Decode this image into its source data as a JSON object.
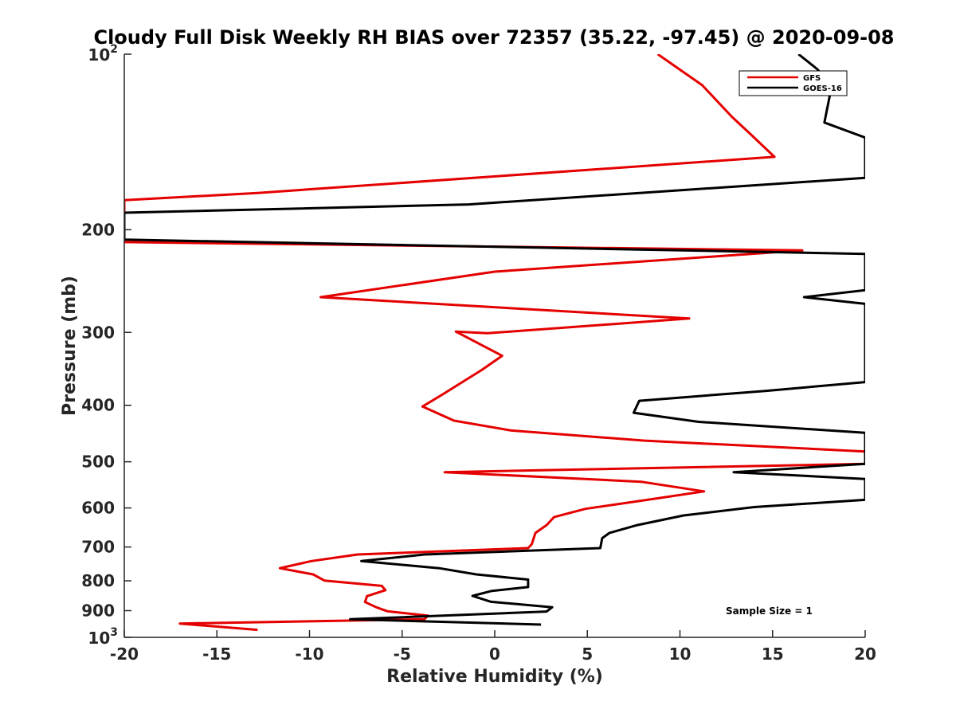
{
  "chart_data": {
    "type": "line",
    "title": "Cloudy Full Disk Weekly RH BIAS over 72357 (35.22, -97.45) @ 2020-09-08",
    "xlabel": "Relative Humidity (%)",
    "ylabel": "Pressure (mb)",
    "xlim": [
      -20,
      20
    ],
    "ylim": [
      100,
      1000
    ],
    "y_scale": "log",
    "y_reversed": true,
    "x_ticks": [
      -20,
      -15,
      -10,
      -5,
      0,
      5,
      10,
      15,
      20
    ],
    "y_ticks": [
      {
        "value": 100,
        "base": "10",
        "exp": "2"
      },
      {
        "value": 200,
        "label": "200"
      },
      {
        "value": 300,
        "label": "300"
      },
      {
        "value": 400,
        "label": "400"
      },
      {
        "value": 500,
        "label": "500"
      },
      {
        "value": 600,
        "label": "600"
      },
      {
        "value": 700,
        "label": "700"
      },
      {
        "value": 800,
        "label": "800"
      },
      {
        "value": 900,
        "label": "900"
      },
      {
        "value": 1000,
        "base": "10",
        "exp": "3"
      }
    ],
    "grid": false,
    "legend_position": "top-right",
    "annotation": "Sample Size = 1",
    "series": [
      {
        "name": "GFS",
        "color": "#e50000",
        "points": [
          [
            8.8,
            100
          ],
          [
            11.2,
            113
          ],
          [
            12.8,
            128
          ],
          [
            13.9,
            138
          ],
          [
            15.1,
            150
          ],
          [
            -12.8,
            173
          ],
          [
            -20,
            178
          ],
          [
            -20,
            210
          ],
          [
            16.6,
            217
          ],
          [
            0,
            236
          ],
          [
            -9.4,
            261
          ],
          [
            10.5,
            284
          ],
          [
            -0.4,
            301
          ],
          [
            -2.1,
            299
          ],
          [
            0.4,
            329
          ],
          [
            -0.7,
            348
          ],
          [
            -2.8,
            383
          ],
          [
            -3.9,
            402
          ],
          [
            -2.2,
            425
          ],
          [
            0.9,
            442
          ],
          [
            8.1,
            460
          ],
          [
            20,
            480
          ],
          [
            20,
            504
          ],
          [
            -2.7,
            521
          ],
          [
            7.9,
            541
          ],
          [
            11.3,
            562
          ],
          [
            8.1,
            582
          ],
          [
            4.9,
            602
          ],
          [
            3.2,
            622
          ],
          [
            2.8,
            642
          ],
          [
            2.2,
            662
          ],
          [
            2.0,
            692
          ],
          [
            1.8,
            703
          ],
          [
            -7.4,
            721
          ],
          [
            -9.9,
            740
          ],
          [
            -11.6,
            761
          ],
          [
            -9.8,
            780
          ],
          [
            -9.2,
            799
          ],
          [
            -6.1,
            816
          ],
          [
            -5.9,
            830
          ],
          [
            -6.9,
            850
          ],
          [
            -7.0,
            870
          ],
          [
            -6.4,
            888
          ],
          [
            -5.8,
            902
          ],
          [
            -3.6,
            918
          ],
          [
            -3.8,
            931
          ],
          [
            -17.0,
            947
          ],
          [
            -12.8,
            971
          ]
        ]
      },
      {
        "name": "GOES-16",
        "color": "#000000",
        "points": [
          [
            16.4,
            100
          ],
          [
            17.4,
            106
          ],
          [
            18.2,
            113
          ],
          [
            17.8,
            131
          ],
          [
            20,
            139
          ],
          [
            20,
            163
          ],
          [
            -1.4,
            181
          ],
          [
            -20,
            187
          ],
          [
            -20,
            208
          ],
          [
            20,
            220
          ],
          [
            20,
            254
          ],
          [
            16.7,
            261
          ],
          [
            20,
            268
          ],
          [
            20,
            365
          ],
          [
            14.6,
            378
          ],
          [
            7.8,
            393
          ],
          [
            7.5,
            412
          ],
          [
            11.0,
            427
          ],
          [
            20,
            446
          ],
          [
            20,
            504
          ],
          [
            12.9,
            521
          ],
          [
            20,
            535
          ],
          [
            20,
            581
          ],
          [
            14.0,
            598
          ],
          [
            10.2,
            618
          ],
          [
            7.7,
            642
          ],
          [
            6.2,
            662
          ],
          [
            5.8,
            676
          ],
          [
            5.7,
            703
          ],
          [
            -3.8,
            721
          ],
          [
            -7.2,
            740
          ],
          [
            -3.0,
            761
          ],
          [
            -1.0,
            780
          ],
          [
            1.8,
            796
          ],
          [
            1.8,
            820
          ],
          [
            -0.2,
            833
          ],
          [
            -1.2,
            849
          ],
          [
            -0.2,
            869
          ],
          [
            3.1,
            888
          ],
          [
            2.8,
            903
          ],
          [
            -7.8,
            931
          ],
          [
            2.5,
            951
          ]
        ]
      }
    ]
  }
}
